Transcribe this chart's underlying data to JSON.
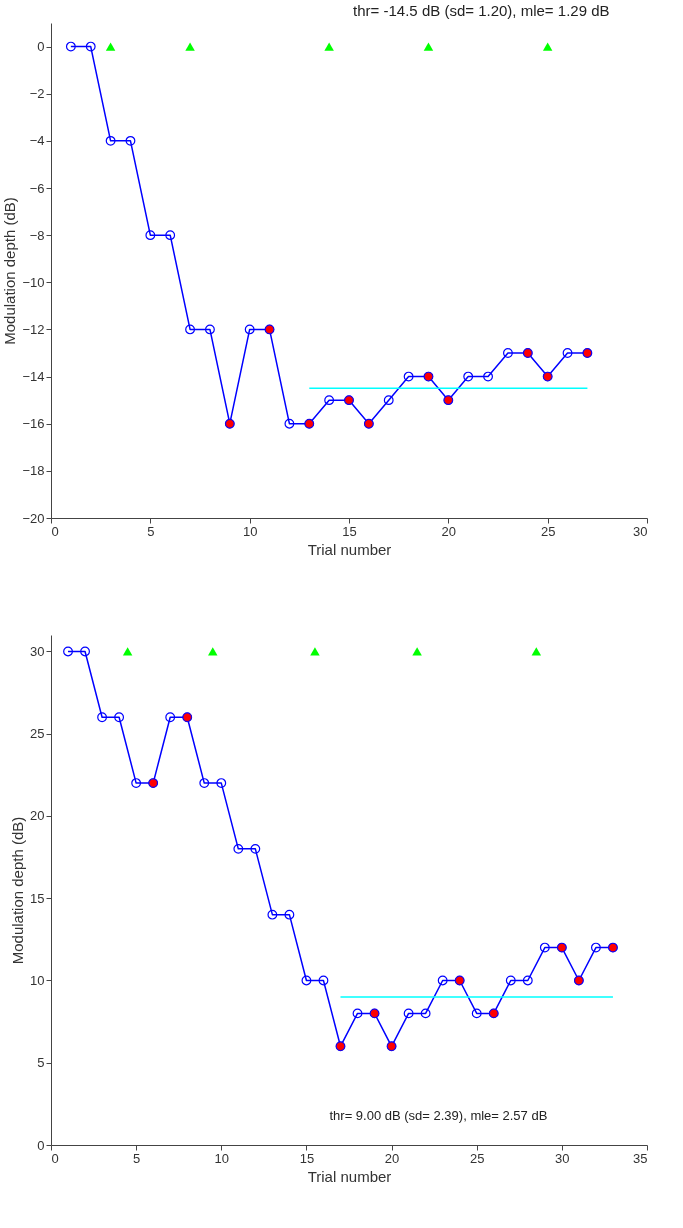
{
  "chart_data": [
    {
      "type": "line",
      "title": "thr=  -14.5 dB (sd=  1.20), mle= 1.29 dB",
      "xlabel": "Trial number",
      "ylabel": "Modulation depth (dB)",
      "xlim": [
        0,
        30
      ],
      "xticks": [
        0,
        5,
        10,
        15,
        20,
        25,
        30
      ],
      "ylim": [
        -20,
        1
      ],
      "yticks": [
        -20,
        -18,
        -16,
        -14,
        -12,
        -10,
        -8,
        -6,
        -4,
        -2,
        0
      ],
      "grid": false,
      "series": [
        {
          "type": "line",
          "color": "#0000ff",
          "marker": "circle",
          "x": [
            1,
            2,
            3,
            4,
            5,
            6,
            7,
            8,
            9,
            10,
            11,
            12,
            13,
            14,
            15,
            16,
            17,
            18,
            19,
            20,
            21,
            22,
            23,
            24,
            25,
            26,
            27
          ],
          "values": [
            0,
            0,
            -4,
            -4,
            -8,
            -8,
            -12,
            -12,
            -16,
            -12,
            -12,
            -16,
            -16,
            -15,
            -15,
            -16,
            -15,
            -14,
            -14,
            -15,
            -14,
            -14,
            -13,
            -13,
            -14,
            -13,
            -13
          ]
        },
        {
          "type": "scatter",
          "color": "#ff0000",
          "marker": "circle",
          "x": [
            9,
            11,
            13,
            15,
            16,
            19,
            20,
            24,
            25,
            27
          ],
          "values": [
            -16,
            -12,
            -16,
            -15,
            -16,
            -14,
            -15,
            -13,
            -14,
            -13
          ]
        },
        {
          "type": "scatter",
          "color": "#00ff00",
          "marker": "triangle",
          "x": [
            3,
            7,
            14,
            19,
            25
          ],
          "values": [
            0,
            0,
            0,
            0,
            0
          ]
        },
        {
          "type": "line",
          "color": "#00ffff",
          "marker": "none",
          "x": [
            13,
            27
          ],
          "values": [
            -14.5,
            -14.5
          ]
        }
      ]
    },
    {
      "type": "line",
      "xlabel": "Trial number",
      "ylabel": "Modulation depth (dB)",
      "annotations": [
        "thr=  9.00 dB (sd=  2.39), mle=  2.57 dB"
      ],
      "xlim": [
        0,
        35
      ],
      "xticks": [
        0,
        5,
        10,
        15,
        20,
        25,
        30,
        35
      ],
      "ylim": [
        0,
        31
      ],
      "yticks": [
        0,
        5,
        10,
        15,
        20,
        25,
        30
      ],
      "grid": false,
      "series": [
        {
          "type": "line",
          "color": "#0000ff",
          "marker": "circle",
          "x": [
            1,
            2,
            3,
            4,
            5,
            6,
            7,
            8,
            9,
            10,
            11,
            12,
            13,
            14,
            15,
            16,
            17,
            18,
            19,
            20,
            21,
            22,
            23,
            24,
            25,
            26,
            27,
            28,
            29,
            30,
            31,
            32,
            33
          ],
          "values": [
            30,
            30,
            26,
            26,
            22,
            22,
            26,
            26,
            22,
            22,
            18,
            18,
            14,
            14,
            10,
            10,
            6,
            8,
            8,
            6,
            8,
            8,
            10,
            10,
            8,
            8,
            10,
            10,
            12,
            12,
            10,
            12,
            12
          ]
        },
        {
          "type": "scatter",
          "color": "#ff0000",
          "marker": "circle",
          "x": [
            6,
            8,
            17,
            19,
            20,
            24,
            26,
            30,
            31,
            33
          ],
          "values": [
            22,
            26,
            6,
            8,
            6,
            10,
            8,
            12,
            10,
            12
          ]
        },
        {
          "type": "scatter",
          "color": "#00ff00",
          "marker": "triangle",
          "x": [
            4.5,
            9.5,
            15.5,
            21.5,
            28.5
          ],
          "values": [
            30,
            30,
            30,
            30,
            30
          ]
        },
        {
          "type": "line",
          "color": "#00ffff",
          "marker": "none",
          "x": [
            17,
            33
          ],
          "values": [
            9,
            9
          ]
        }
      ]
    }
  ]
}
